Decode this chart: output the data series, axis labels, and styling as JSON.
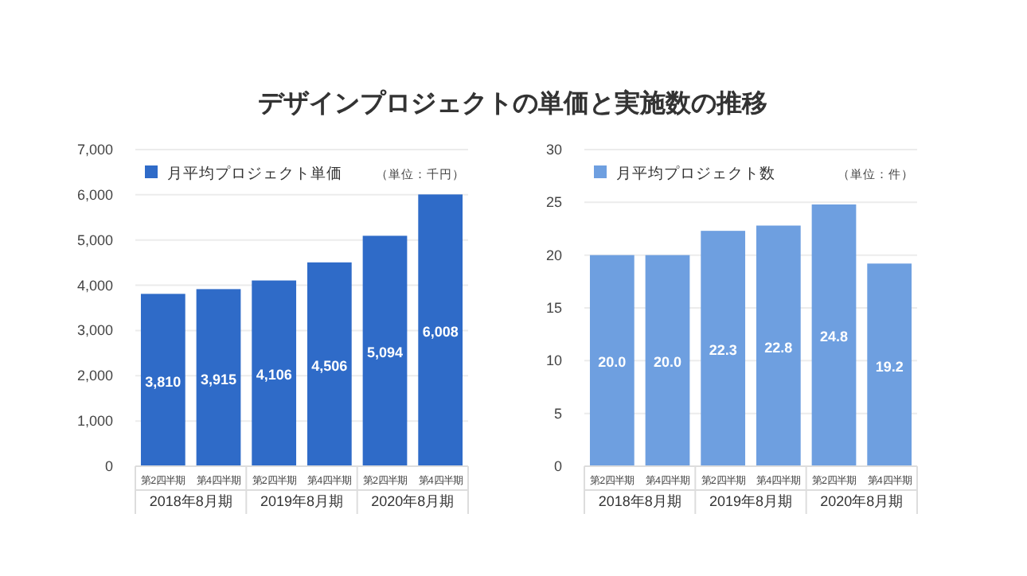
{
  "chart_data": [
    {
      "type": "bar",
      "title": "デザインプロジェクトの単価と実施数の推移",
      "categories": [
        "第2四半期",
        "第4四半期",
        "第2四半期",
        "第4四半期",
        "第2四半期",
        "第4四半期"
      ],
      "series": [
        {
          "name": "月平均プロジェクト単価",
          "color": "#2f6bc8",
          "values": [
            3810,
            3915,
            4106,
            4506,
            5094,
            6008
          ],
          "value_labels": [
            "3,810",
            "3,915",
            "4,106",
            "4,506",
            "5,094",
            "6,008"
          ]
        }
      ],
      "ylim": [
        0,
        7000
      ],
      "yticks": [
        0,
        {
          "value": 1000,
          "label": "1,000"
        },
        {
          "value": 2000,
          "label": "2,000"
        },
        {
          "value": 3000,
          "label": "3,000"
        },
        {
          "value": 4000,
          "label": "4,000"
        },
        {
          "value": 5000,
          "label": "5,000"
        },
        {
          "value": 6000,
          "label": "6,000"
        },
        {
          "value": 7000,
          "label": "7,000"
        }
      ],
      "grid": "y",
      "legend": "top left",
      "annotations": [
        "（単位：千円）",
        "2018年8月期",
        "2019年8月期",
        "2020年8月期"
      ]
    },
    {
      "type": "bar",
      "categories": [
        "第2四半期",
        "第4四半期",
        "第2四半期",
        "第4四半期",
        "第2四半期",
        "第4四半期"
      ],
      "series": [
        {
          "name": "月平均プロジェクト数",
          "color": "#6e9fe0",
          "values": [
            20.0,
            20.0,
            22.3,
            22.8,
            24.8,
            19.2
          ],
          "value_labels": [
            "20.0",
            "20.0",
            "22.3",
            "22.8",
            "24.8",
            "19.2"
          ]
        }
      ],
      "ylim": [
        0,
        30
      ],
      "yticks": [
        0,
        5,
        10,
        15,
        20,
        25,
        30
      ],
      "grid": "y",
      "legend": "top left",
      "annotations": [
        "（単位：件）",
        "2018年8月期",
        "2019年8月期",
        "2020年8月期"
      ]
    }
  ]
}
